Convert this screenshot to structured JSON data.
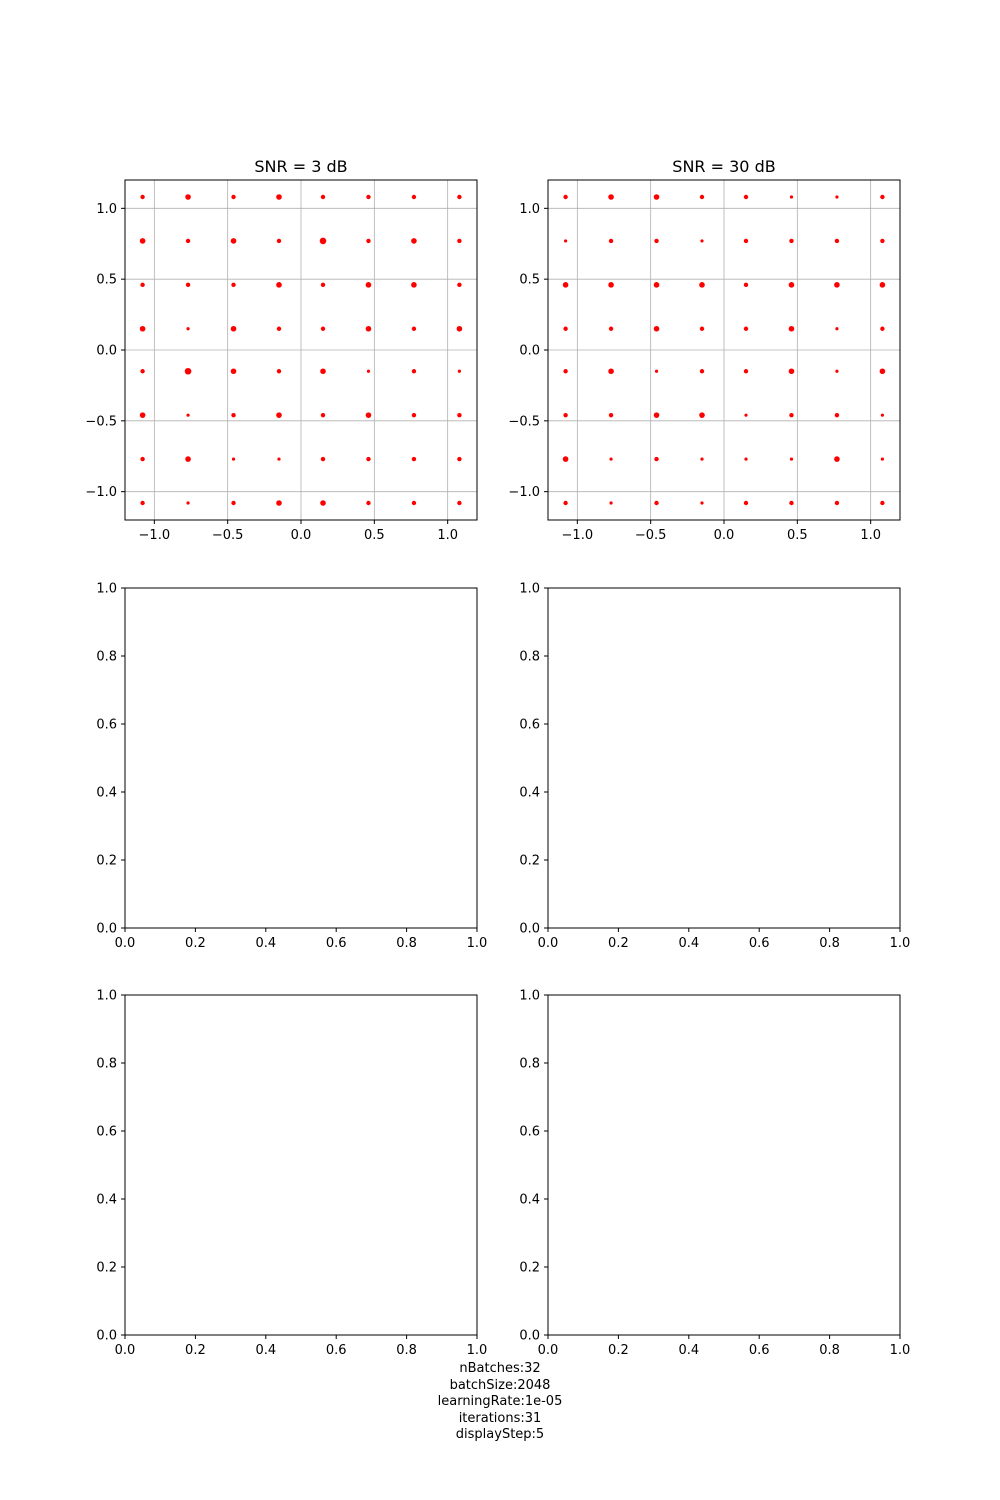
{
  "chart_data": [
    {
      "type": "scatter",
      "title": "SNR = 3 dB",
      "xlim": [
        -1.2,
        1.2
      ],
      "ylim": [
        -1.2,
        1.2
      ],
      "xticks": [
        "−1.0",
        "−0.5",
        "0.0",
        "0.5",
        "1.0"
      ],
      "yticks": [
        "−1.0",
        "−0.5",
        "0.0",
        "0.5",
        "1.0"
      ],
      "xtick_values": [
        -1.0,
        -0.5,
        0.0,
        0.5,
        1.0
      ],
      "ytick_values": [
        -1.0,
        -0.5,
        0.0,
        0.5,
        1.0
      ],
      "grid": true,
      "marker_color": "#ff0000",
      "constellation_levels": [
        -1.08,
        -0.77,
        -0.46,
        -0.15,
        0.15,
        0.46,
        0.77,
        1.08
      ],
      "weights_rows_top_to_bottom": [
        [
          2,
          3,
          2,
          3,
          2,
          2,
          2,
          2
        ],
        [
          3,
          2,
          3,
          2,
          4,
          2,
          3,
          2
        ],
        [
          2,
          2,
          2,
          3,
          2,
          3,
          3,
          2
        ],
        [
          3,
          1,
          3,
          2,
          2,
          3,
          2,
          3
        ],
        [
          2,
          4,
          3,
          2,
          3,
          1,
          2,
          1
        ],
        [
          3,
          1,
          2,
          3,
          2,
          3,
          2,
          2
        ],
        [
          2,
          3,
          1,
          1,
          2,
          2,
          2,
          2
        ],
        [
          2,
          1,
          2,
          3,
          3,
          2,
          2,
          2
        ]
      ]
    },
    {
      "type": "scatter",
      "title": "SNR = 30 dB",
      "xlim": [
        -1.2,
        1.2
      ],
      "ylim": [
        -1.2,
        1.2
      ],
      "xticks": [
        "−1.0",
        "−0.5",
        "0.0",
        "0.5",
        "1.0"
      ],
      "yticks": [
        "−1.0",
        "−0.5",
        "0.0",
        "0.5",
        "1.0"
      ],
      "xtick_values": [
        -1.0,
        -0.5,
        0.0,
        0.5,
        1.0
      ],
      "ytick_values": [
        -1.0,
        -0.5,
        0.0,
        0.5,
        1.0
      ],
      "grid": true,
      "marker_color": "#ff0000",
      "constellation_levels": [
        -1.08,
        -0.77,
        -0.46,
        -0.15,
        0.15,
        0.46,
        0.77,
        1.08
      ],
      "weights_rows_top_to_bottom": [
        [
          2,
          3,
          3,
          2,
          2,
          1,
          1,
          2
        ],
        [
          1,
          2,
          2,
          1,
          2,
          2,
          2,
          2
        ],
        [
          3,
          3,
          3,
          3,
          2,
          3,
          3,
          3
        ],
        [
          2,
          2,
          3,
          2,
          2,
          3,
          1,
          2
        ],
        [
          2,
          3,
          1,
          2,
          2,
          3,
          1,
          3
        ],
        [
          2,
          2,
          3,
          3,
          1,
          2,
          2,
          1
        ],
        [
          3,
          1,
          2,
          1,
          1,
          1,
          3,
          1
        ],
        [
          2,
          1,
          2,
          1,
          2,
          2,
          2,
          2
        ]
      ]
    },
    {
      "type": "scatter",
      "title": "",
      "xlim": [
        0,
        1
      ],
      "ylim": [
        0,
        1
      ],
      "xticks": [
        "0.0",
        "0.2",
        "0.4",
        "0.6",
        "0.8",
        "1.0"
      ],
      "yticks": [
        "0.0",
        "0.2",
        "0.4",
        "0.6",
        "0.8",
        "1.0"
      ],
      "xtick_values": [
        0.0,
        0.2,
        0.4,
        0.6,
        0.8,
        1.0
      ],
      "ytick_values": [
        0.0,
        0.2,
        0.4,
        0.6,
        0.8,
        1.0
      ],
      "grid": false
    },
    {
      "type": "scatter",
      "title": "",
      "xlim": [
        0,
        1
      ],
      "ylim": [
        0,
        1
      ],
      "xticks": [
        "0.0",
        "0.2",
        "0.4",
        "0.6",
        "0.8",
        "1.0"
      ],
      "yticks": [
        "0.0",
        "0.2",
        "0.4",
        "0.6",
        "0.8",
        "1.0"
      ],
      "xtick_values": [
        0.0,
        0.2,
        0.4,
        0.6,
        0.8,
        1.0
      ],
      "ytick_values": [
        0.0,
        0.2,
        0.4,
        0.6,
        0.8,
        1.0
      ],
      "grid": false
    },
    {
      "type": "scatter",
      "title": "",
      "xlim": [
        0,
        1
      ],
      "ylim": [
        0,
        1
      ],
      "xticks": [
        "0.0",
        "0.2",
        "0.4",
        "0.6",
        "0.8",
        "1.0"
      ],
      "yticks": [
        "0.0",
        "0.2",
        "0.4",
        "0.6",
        "0.8",
        "1.0"
      ],
      "xtick_values": [
        0.0,
        0.2,
        0.4,
        0.6,
        0.8,
        1.0
      ],
      "ytick_values": [
        0.0,
        0.2,
        0.4,
        0.6,
        0.8,
        1.0
      ],
      "grid": false
    },
    {
      "type": "scatter",
      "title": "",
      "xlim": [
        0,
        1
      ],
      "ylim": [
        0,
        1
      ],
      "xticks": [
        "0.0",
        "0.2",
        "0.4",
        "0.6",
        "0.8",
        "1.0"
      ],
      "yticks": [
        "0.0",
        "0.2",
        "0.4",
        "0.6",
        "0.8",
        "1.0"
      ],
      "xtick_values": [
        0.0,
        0.2,
        0.4,
        0.6,
        0.8,
        1.0
      ],
      "ytick_values": [
        0.0,
        0.2,
        0.4,
        0.6,
        0.8,
        1.0
      ],
      "grid": false
    }
  ],
  "footer": {
    "lines": [
      "nBatches:32",
      "batchSize:2048",
      "learningRate:1e-05",
      "iterations:31",
      "displayStep:5"
    ]
  }
}
